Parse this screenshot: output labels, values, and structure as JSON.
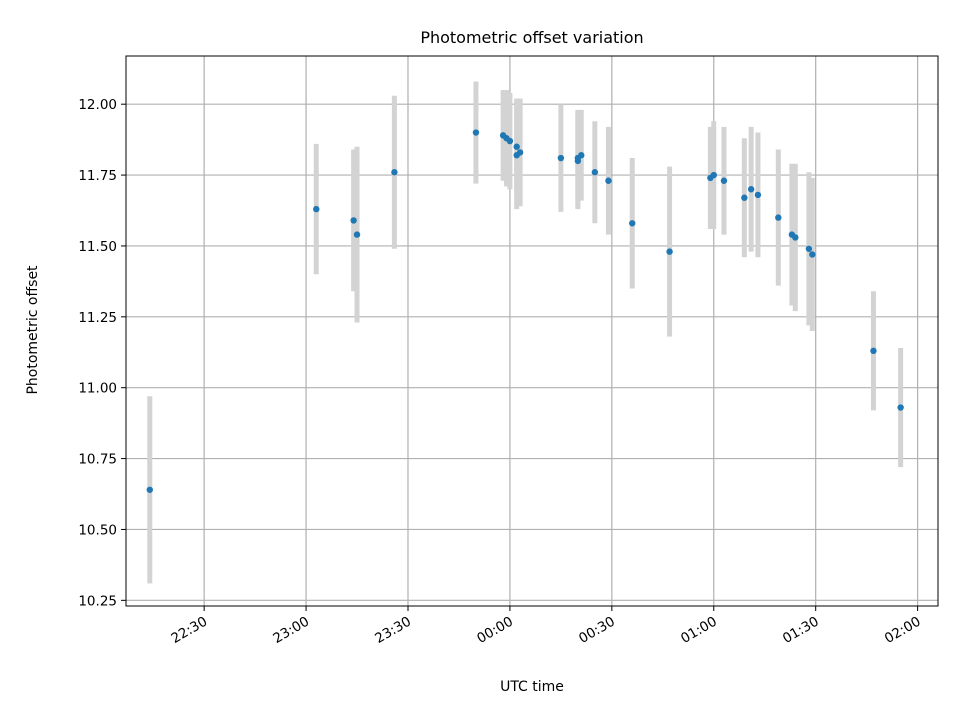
{
  "chart_data": {
    "type": "scatter",
    "title": "Photometric offset variation",
    "xlabel": "UTC time",
    "ylabel": "Photometric offset",
    "grid": true,
    "colors": {
      "point": "#1f77b4",
      "errorbar": "#d3d3d3",
      "grid": "#b0b0b0",
      "frame": "#000000"
    },
    "x_ticks": [
      "22:30",
      "23:00",
      "23:30",
      "00:00",
      "00:30",
      "01:00",
      "01:30",
      "02:00"
    ],
    "y_ticks": [
      "10.25",
      "10.50",
      "10.75",
      "11.00",
      "11.25",
      "11.50",
      "11.75",
      "12.00"
    ],
    "xlim": [
      "22:07",
      "02:06"
    ],
    "ylim": [
      10.23,
      12.17
    ],
    "points": [
      {
        "x": "22:14",
        "y": 10.64,
        "err": 0.33
      },
      {
        "x": "23:03",
        "y": 11.63,
        "err": 0.23
      },
      {
        "x": "23:14",
        "y": 11.59,
        "err": 0.25
      },
      {
        "x": "23:15",
        "y": 11.54,
        "err": 0.31
      },
      {
        "x": "23:26",
        "y": 11.76,
        "err": 0.27
      },
      {
        "x": "23:50",
        "y": 11.9,
        "err": 0.18
      },
      {
        "x": "23:58",
        "y": 11.89,
        "err": 0.16
      },
      {
        "x": "23:59",
        "y": 11.88,
        "err": 0.17
      },
      {
        "x": "00:00",
        "y": 11.87,
        "err": 0.17
      },
      {
        "x": "00:02",
        "y": 11.85,
        "err": 0.17
      },
      {
        "x": "00:02",
        "y": 11.82,
        "err": 0.19
      },
      {
        "x": "00:03",
        "y": 11.83,
        "err": 0.19
      },
      {
        "x": "00:15",
        "y": 11.81,
        "err": 0.19
      },
      {
        "x": "00:20",
        "y": 11.8,
        "err": 0.17
      },
      {
        "x": "00:20",
        "y": 11.81,
        "err": 0.17
      },
      {
        "x": "00:21",
        "y": 11.82,
        "err": 0.16
      },
      {
        "x": "00:25",
        "y": 11.76,
        "err": 0.18
      },
      {
        "x": "00:29",
        "y": 11.73,
        "err": 0.19
      },
      {
        "x": "00:36",
        "y": 11.58,
        "err": 0.23
      },
      {
        "x": "00:47",
        "y": 11.48,
        "err": 0.3
      },
      {
        "x": "00:59",
        "y": 11.74,
        "err": 0.18
      },
      {
        "x": "01:00",
        "y": 11.75,
        "err": 0.19
      },
      {
        "x": "01:03",
        "y": 11.73,
        "err": 0.19
      },
      {
        "x": "01:09",
        "y": 11.67,
        "err": 0.21
      },
      {
        "x": "01:11",
        "y": 11.7,
        "err": 0.22
      },
      {
        "x": "01:13",
        "y": 11.68,
        "err": 0.22
      },
      {
        "x": "01:19",
        "y": 11.6,
        "err": 0.24
      },
      {
        "x": "01:23",
        "y": 11.54,
        "err": 0.25
      },
      {
        "x": "01:24",
        "y": 11.53,
        "err": 0.26
      },
      {
        "x": "01:28",
        "y": 11.49,
        "err": 0.27
      },
      {
        "x": "01:29",
        "y": 11.47,
        "err": 0.27
      },
      {
        "x": "01:47",
        "y": 11.13,
        "err": 0.21
      },
      {
        "x": "01:55",
        "y": 10.93,
        "err": 0.21
      }
    ]
  }
}
